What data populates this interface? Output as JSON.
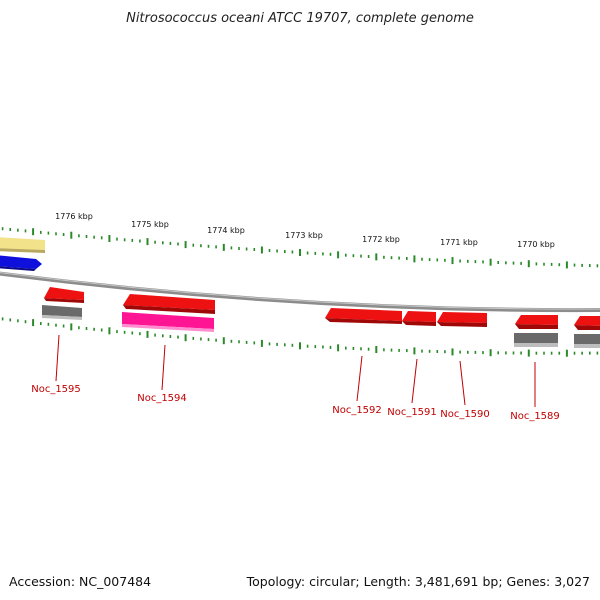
{
  "title": "Nitrosococcus oceani ATCC 19707, complete genome",
  "footer": {
    "accession": "Accession: NC_007484",
    "topology": "Topology: circular; Length: 3,481,691 bp; Genes: 3,027"
  },
  "colors": {
    "forward_gene": "#ee1111",
    "reverse_gene": "#ff2020",
    "rna": "#ff1493",
    "other": "#6a6a6a",
    "blue_feature": "#1010dd",
    "yellow_feature": "#f2e28a",
    "tick": "#2a8a2a",
    "label": "#c00000",
    "backbone": "#8c8c8c"
  },
  "kbp_labels": [
    "1776 kbp",
    "1775 kbp",
    "1774 kbp",
    "1773 kbp",
    "1772 kbp",
    "1771 kbp",
    "1770 kbp"
  ],
  "gene_labels": [
    "Noc_1595",
    "Noc_1594",
    "Noc_1592",
    "Noc_1591",
    "Noc_1590",
    "Noc_1589"
  ]
}
